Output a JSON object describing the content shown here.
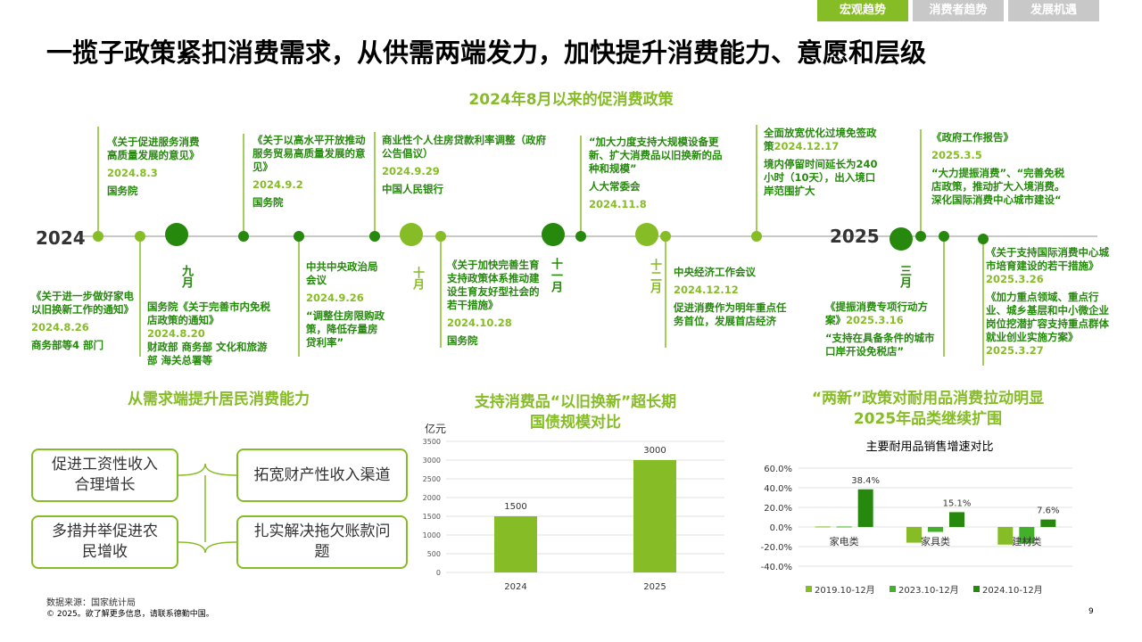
{
  "tabs": [
    "宏观趋势",
    "消费者趋势",
    "发展机遇"
  ],
  "title": "一揽子政策紧扣消费需求，从供需两端发力，加快提升消费能力、意愿和层级",
  "timeline": {
    "title": "2024年8月以来的促消费政策",
    "year_start": "2024",
    "year_end": "2025",
    "months": [
      "九月",
      "十月",
      "十一月",
      "十二月",
      "三月"
    ],
    "events": [
      {
        "title": "《关于促进服务消费高质量发展的意见》",
        "date": "2024.8.3",
        "issuer": "国务院"
      },
      {
        "title": "《关于以高水平开放推动服务贸易高质量发展的意见》",
        "date": "2024.9.2",
        "issuer": "国务院"
      },
      {
        "title": "商业性个人住房贷款利率调整（政府公告倡议）",
        "date": "2024.9.29",
        "issuer": "中国人民银行"
      },
      {
        "title": "“加大力度支持大规模设备更新、扩大消费品以旧换新的品种和规模”",
        "issuer": "人大常委会",
        "date": "2024.11.8"
      },
      {
        "title": "全面放宽优化过境免签政策",
        "date": "2024.12.17",
        "note": "境内停留时间延长为240小时（10天），出入境口岸范围扩大"
      },
      {
        "title": "《政府工作报告》",
        "date": "2025.3.5",
        "note": "“大力提振消费”、“完善免税店政策，推动扩大入境消费。深化国际消费中心城市建设“"
      },
      {
        "title": "《关于进一步做好家电以旧换新工作的通知》",
        "date": "2024.8.26",
        "issuer": "商务部等4 部门"
      },
      {
        "title": "国务院《关于完善市内免税店政策的通知》",
        "date": "2024.8.20",
        "issuer": "财政部 商务部 文化和旅游部 海关总署等"
      },
      {
        "title": "中共中央政治局会议",
        "date": "2024.9.26",
        "note": "“调整住房限购政策，降低存量房贷利率”"
      },
      {
        "title": "《关于加快完善生育支持政策体系推动建设生育友好型社会的若干措施》",
        "date": "2024.10.28",
        "issuer": "国务院"
      },
      {
        "title": "中央经济工作会议",
        "date": "2024.12.12",
        "note": "促进消费作为明年重点任务首位，发展首店经济"
      },
      {
        "title": "《提振消费专项行动方案》",
        "date": "2025.3.16",
        "note": "“支持在具备条件的城市口岸开设免税店”"
      },
      {
        "title": "《关于支持国际消费中心城市培育建设的若干措施》",
        "date": "2025.3.26",
        "title2": "《加力重点领域、重点行业、城乡基层和中小微企业岗位挖潜扩容支持重点群体就业创业实施方案》",
        "date2": "2025.3.27"
      }
    ]
  },
  "demand": {
    "title": "从需求端提升居民消费能力",
    "boxes": [
      "促进工资性收入合理增长",
      "拓宽财产性收入渠道",
      "多措并举促进农民增收",
      "扎实解决拖欠账款问题"
    ]
  },
  "durables_heading": [
    "“两新”政策对耐用品消费拉动明显",
    "2025年品类继续扩围"
  ],
  "chart_data": [
    {
      "type": "bar",
      "title": [
        "支持消费品“以旧换新”超长期",
        "国债规模对比"
      ],
      "y_label": "亿元",
      "categories": [
        "2024",
        "2025"
      ],
      "values": [
        1500,
        3000
      ],
      "color": "#86bc25",
      "ylim": [
        0,
        3500
      ],
      "yticks": [
        0,
        500,
        1000,
        1500,
        2000,
        2500,
        3000,
        3500
      ],
      "grid": true
    },
    {
      "type": "grouped_bar",
      "title": "主要耐用品销售增速对比",
      "categories": [
        "家电类",
        "家具类",
        "建材类"
      ],
      "series": [
        {
          "name": "2019.10-12月",
          "color": "#86bc25",
          "values": [
            0.5,
            -16,
            -18
          ]
        },
        {
          "name": "2023.10-12月",
          "color": "#43b02a",
          "values": [
            0.5,
            -5,
            -17
          ]
        },
        {
          "name": "2024.10-12月",
          "color": "#26890d",
          "values": [
            38.4,
            15.1,
            7.6
          ],
          "value_labels": [
            "38.4%",
            "15.1%",
            "7.6%"
          ]
        }
      ],
      "ylim": [
        -40,
        60
      ],
      "yticks": [
        {
          "value": -40,
          "label": "-40.0%"
        },
        {
          "value": -20,
          "label": "-20.0%"
        },
        {
          "value": 0,
          "label": "0.0%"
        },
        {
          "value": 20,
          "label": "20.0%"
        },
        {
          "value": 40,
          "label": "40.0%"
        },
        {
          "value": 60,
          "label": "60.0%"
        }
      ],
      "grid": true,
      "legend": "bottom"
    }
  ],
  "footer": {
    "source": "数据来源：国家统计局",
    "copyright": "© 2025。欲了解更多信息，请联系德勤中国。",
    "page": "9"
  }
}
